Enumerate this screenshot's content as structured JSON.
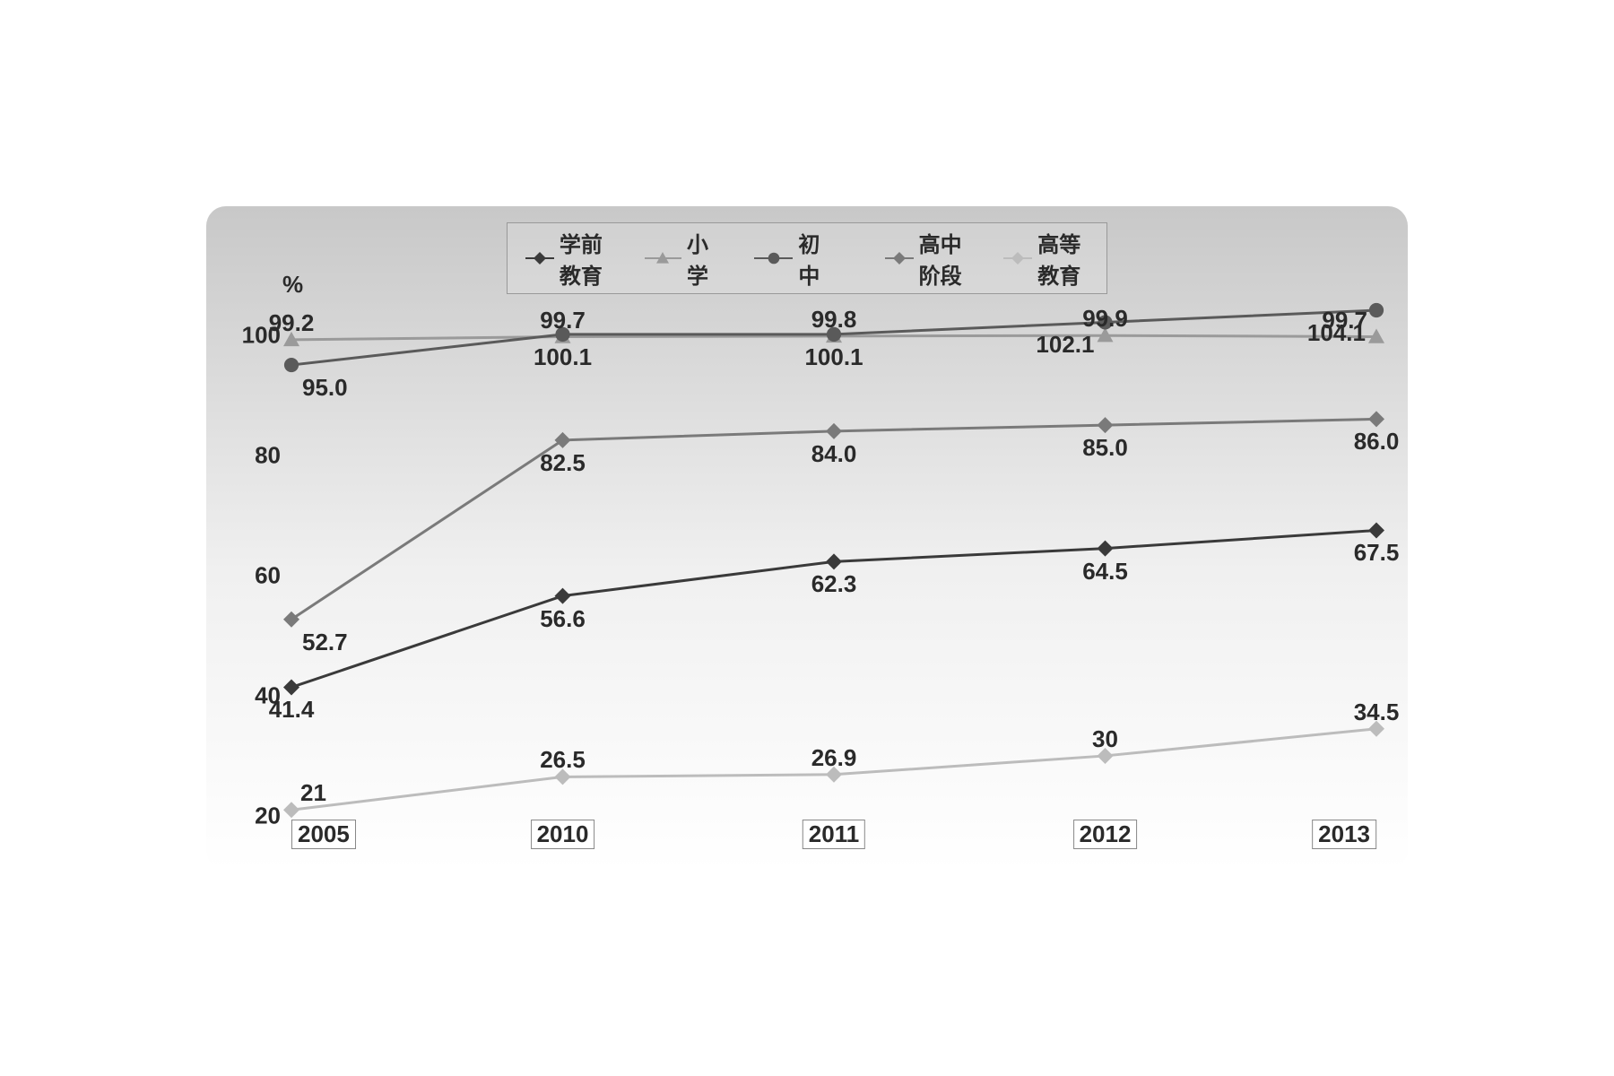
{
  "chart": {
    "type": "line",
    "y_unit": "%",
    "background_gradient": [
      "#c8c8c8",
      "#f0f0f0",
      "#ffffff"
    ],
    "border_radius": 22,
    "xlim": [
      0,
      4
    ],
    "ylim": [
      20,
      105
    ],
    "x_categories": [
      "2005",
      "2010",
      "2011",
      "2012",
      "2013"
    ],
    "y_ticks": [
      20,
      40,
      60,
      80,
      100
    ],
    "y_tick_labels": [
      "20",
      "40",
      "60",
      "80",
      "100"
    ],
    "line_width": 3,
    "marker_size": 9,
    "label_fontsize": 26,
    "legend_fontsize": 24,
    "text_color": "#2a2a2a",
    "series": [
      {
        "id": "preschool",
        "name": "学前教育",
        "marker": "diamond",
        "color": "#3a3a3a",
        "values": [
          41.4,
          56.6,
          62.3,
          64.5,
          67.5
        ],
        "labels": [
          "41.4",
          "56.6",
          "62.3",
          "64.5",
          "67.5"
        ],
        "label_pos": [
          "below",
          "below",
          "below",
          "below",
          "below"
        ]
      },
      {
        "id": "primary",
        "name": "小学",
        "marker": "triangle",
        "color": "#9a9a9a",
        "values": [
          99.2,
          99.7,
          99.8,
          99.9,
          99.7
        ],
        "labels": [
          "99.2",
          "99.7",
          "99.8",
          "99.9",
          "99.7"
        ],
        "label_pos": [
          "above",
          "above",
          "above",
          "above",
          "above-right"
        ]
      },
      {
        "id": "junior",
        "name": "初　中",
        "marker": "circle",
        "color": "#5a5a5a",
        "values": [
          95.0,
          100.1,
          100.1,
          102.1,
          104.1
        ],
        "labels": [
          "95.0",
          "100.1",
          "100.1",
          "102.1",
          "104.1"
        ],
        "label_pos": [
          "below-left",
          "below",
          "below",
          "below-right",
          "below-right"
        ]
      },
      {
        "id": "senior",
        "name": "高中阶段",
        "marker": "diamond",
        "color": "#7a7a7a",
        "values": [
          52.7,
          82.5,
          84.0,
          85.0,
          86.0
        ],
        "labels": [
          "52.7",
          "82.5",
          "84.0",
          "85.0",
          "86.0"
        ],
        "label_pos": [
          "below-left",
          "below",
          "below",
          "below",
          "below"
        ]
      },
      {
        "id": "higher",
        "name": "高等教育",
        "marker": "diamond",
        "color": "#bcbcbc",
        "values": [
          21,
          26.5,
          26.9,
          30,
          34.5
        ],
        "labels": [
          "21",
          "26.5",
          "26.9",
          "30",
          "34.5"
        ],
        "label_pos": [
          "above-left",
          "above",
          "above",
          "above",
          "above"
        ]
      }
    ]
  }
}
